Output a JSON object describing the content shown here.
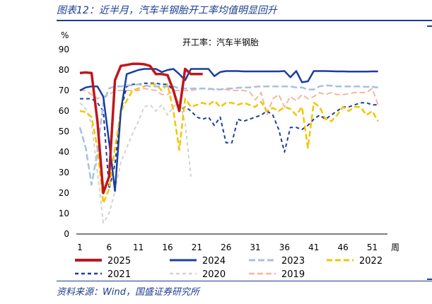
{
  "figure": {
    "title": "图表12：近半月，汽车半钢胎开工率均值明显回升",
    "source": "资料来源：Wind，国盛证券研究所"
  },
  "chart_data": {
    "type": "line",
    "title": "开工率：汽车半钢胎",
    "ylabel": "%",
    "xlabel": "周",
    "xlim": [
      1,
      53
    ],
    "ylim": [
      0,
      90
    ],
    "x_ticks": [
      1,
      6,
      11,
      16,
      21,
      26,
      31,
      36,
      41,
      46,
      51
    ],
    "y_ticks": [
      0,
      10,
      20,
      30,
      40,
      50,
      60,
      70,
      80,
      90
    ],
    "series": [
      {
        "name": "2025",
        "color": "#c0161c",
        "dash": "solid",
        "width": 3.5,
        "x": [
          1,
          2,
          3,
          4,
          5,
          6,
          7,
          8,
          9,
          10,
          11,
          12,
          13,
          14,
          15,
          16,
          17,
          18,
          19,
          20,
          21,
          22
        ],
        "y": [
          78.5,
          78.8,
          78.5,
          55,
          20,
          28,
          75,
          82,
          82.5,
          83,
          83,
          82.8,
          82,
          78,
          78,
          77.5,
          70,
          60,
          80.5,
          78,
          78,
          78
        ]
      },
      {
        "name": "2024",
        "color": "#1a3f9e",
        "dash": "solid",
        "width": 2.5,
        "x": [
          1,
          2,
          3,
          4,
          5,
          6,
          7,
          8,
          9,
          10,
          11,
          12,
          13,
          14,
          15,
          16,
          17,
          18,
          19,
          20,
          21,
          22,
          23,
          24,
          25,
          26,
          27,
          28,
          29,
          30,
          31,
          32,
          33,
          34,
          35,
          36,
          37,
          38,
          39,
          40,
          41,
          42,
          43,
          44,
          45,
          46,
          47,
          48,
          49,
          50,
          51,
          52
        ],
        "y": [
          70,
          71.5,
          72,
          72,
          67,
          45,
          21,
          60,
          78,
          79,
          80,
          80.5,
          80.5,
          80.5,
          79,
          80,
          80.5,
          78,
          75,
          80.5,
          80.5,
          80.5,
          80.5,
          77,
          79,
          79.5,
          79.5,
          79.5,
          79.3,
          79.3,
          79.3,
          79.3,
          79.3,
          79.3,
          79.3,
          79.5,
          76.5,
          79.5,
          74,
          74.5,
          79.5,
          79.5,
          79.5,
          79.4,
          79.3,
          79.3,
          79.2,
          79.2,
          79.2,
          79.2,
          79.3,
          79.3
        ]
      },
      {
        "name": "2023",
        "color": "#a5c1e3",
        "dash": "9,4",
        "width": 2.5,
        "x": [
          1,
          2,
          3,
          4,
          5,
          6,
          7,
          8,
          9,
          10,
          11,
          12,
          13,
          14,
          15,
          16,
          17,
          18,
          19,
          20,
          21,
          22,
          23,
          24,
          25,
          26,
          27,
          28,
          29,
          30,
          31,
          32,
          33,
          34,
          35,
          36,
          37,
          38,
          39,
          40,
          41,
          42,
          43,
          44,
          45,
          46,
          47,
          48,
          49,
          50,
          51,
          52
        ],
        "y": [
          52,
          42,
          24,
          40,
          64,
          71,
          72,
          72,
          72.5,
          72.5,
          73,
          72.5,
          72,
          72,
          72,
          72,
          72,
          71,
          71,
          71,
          71,
          71,
          71,
          70.5,
          70.5,
          71,
          71,
          71.3,
          71.5,
          71.5,
          71.8,
          72,
          72,
          72,
          72,
          72,
          72,
          71.5,
          71.5,
          70.5,
          70.5,
          72,
          72.5,
          72.3,
          72,
          72,
          72,
          72,
          72,
          71.8,
          71.8,
          71.5
        ]
      },
      {
        "name": "2022",
        "color": "#f5c400",
        "dash": "8,4",
        "width": 2.5,
        "x": [
          1,
          2,
          3,
          4,
          5,
          6,
          7,
          8,
          9,
          10,
          11,
          12,
          13,
          14,
          15,
          16,
          17,
          18,
          19,
          20,
          21,
          22,
          23,
          24,
          25,
          26,
          27,
          28,
          29,
          30,
          31,
          32,
          33,
          34,
          35,
          36,
          37,
          38,
          39,
          40,
          41,
          42,
          43,
          44,
          45,
          46,
          47,
          48,
          49,
          50,
          51,
          52
        ],
        "y": [
          60,
          59.5,
          57,
          42,
          15,
          22,
          42,
          60,
          65,
          70,
          71,
          72,
          73,
          73,
          70,
          73,
          60,
          41,
          66,
          62,
          63,
          64,
          63,
          65,
          62,
          64,
          64,
          63,
          64,
          63,
          62,
          64.5,
          60,
          61.5,
          60,
          62,
          61,
          58,
          62,
          42,
          64,
          62,
          56,
          55,
          58,
          62,
          60,
          62,
          62,
          58,
          60,
          55
        ]
      },
      {
        "name": "2021",
        "color": "#1a3f9e",
        "dash": "5,4",
        "width": 2,
        "x": [
          1,
          2,
          3,
          4,
          5,
          6,
          7,
          8,
          9,
          10,
          11,
          12,
          13,
          14,
          15,
          16,
          17,
          18,
          19,
          20,
          21,
          22,
          23,
          24,
          25,
          26,
          27,
          28,
          29,
          30,
          31,
          32,
          33,
          34,
          35,
          36,
          37,
          38,
          39,
          40,
          41,
          42,
          43,
          44,
          45,
          46,
          47,
          48,
          49,
          50,
          51,
          52
        ],
        "y": [
          66,
          66,
          66,
          64,
          60,
          22,
          34,
          60,
          72,
          73,
          73,
          73.5,
          73.5,
          73.5,
          73,
          73,
          70,
          60,
          62,
          60,
          57,
          56,
          57,
          53,
          57,
          44.5,
          44.5,
          56,
          55,
          56,
          57,
          58,
          60,
          58,
          51,
          40,
          52,
          52,
          51,
          53,
          56,
          58,
          56,
          58,
          60,
          62,
          62,
          63,
          64,
          64,
          63,
          63
        ]
      },
      {
        "name": "2020",
        "color": "#d3d3d3",
        "dash": "5,4",
        "width": 2,
        "x": [
          1,
          2,
          3,
          4,
          5,
          6,
          7,
          8,
          9,
          10,
          11,
          12,
          13,
          14,
          15,
          16,
          17,
          18,
          19,
          20
        ],
        "y": [
          64,
          61,
          54,
          30,
          5.5,
          10,
          21,
          35,
          42,
          49,
          55,
          62,
          63,
          60,
          63,
          58,
          62,
          65,
          54,
          28
        ]
      },
      {
        "name": "2019",
        "color": "#f2b8a2",
        "dash": "8,4",
        "width": 2,
        "x": [
          1,
          2,
          3,
          4,
          5,
          6,
          7,
          8,
          9,
          10,
          11,
          12,
          13,
          14,
          15,
          16,
          17,
          18,
          19,
          20,
          21,
          22,
          23,
          24,
          25,
          26,
          27,
          28,
          29,
          30,
          31,
          32,
          33,
          34,
          35,
          36,
          37,
          38,
          39,
          40,
          41,
          42,
          43,
          44,
          45,
          46,
          47,
          48,
          49,
          50,
          51,
          52
        ],
        "y": [
          70,
          70,
          68,
          66,
          67,
          68,
          70,
          70,
          70,
          70,
          70,
          71,
          70.5,
          70,
          68,
          68,
          70,
          70,
          70,
          70,
          70.5,
          71,
          70.5,
          71,
          70.5,
          70.5,
          70,
          70,
          70,
          69.5,
          65.5,
          69,
          58,
          66,
          68,
          62,
          67,
          65,
          68,
          66,
          67,
          69,
          68,
          69,
          68,
          68,
          68.5,
          69,
          69,
          69,
          71,
          63
        ]
      }
    ],
    "legend_position": "bottom"
  }
}
